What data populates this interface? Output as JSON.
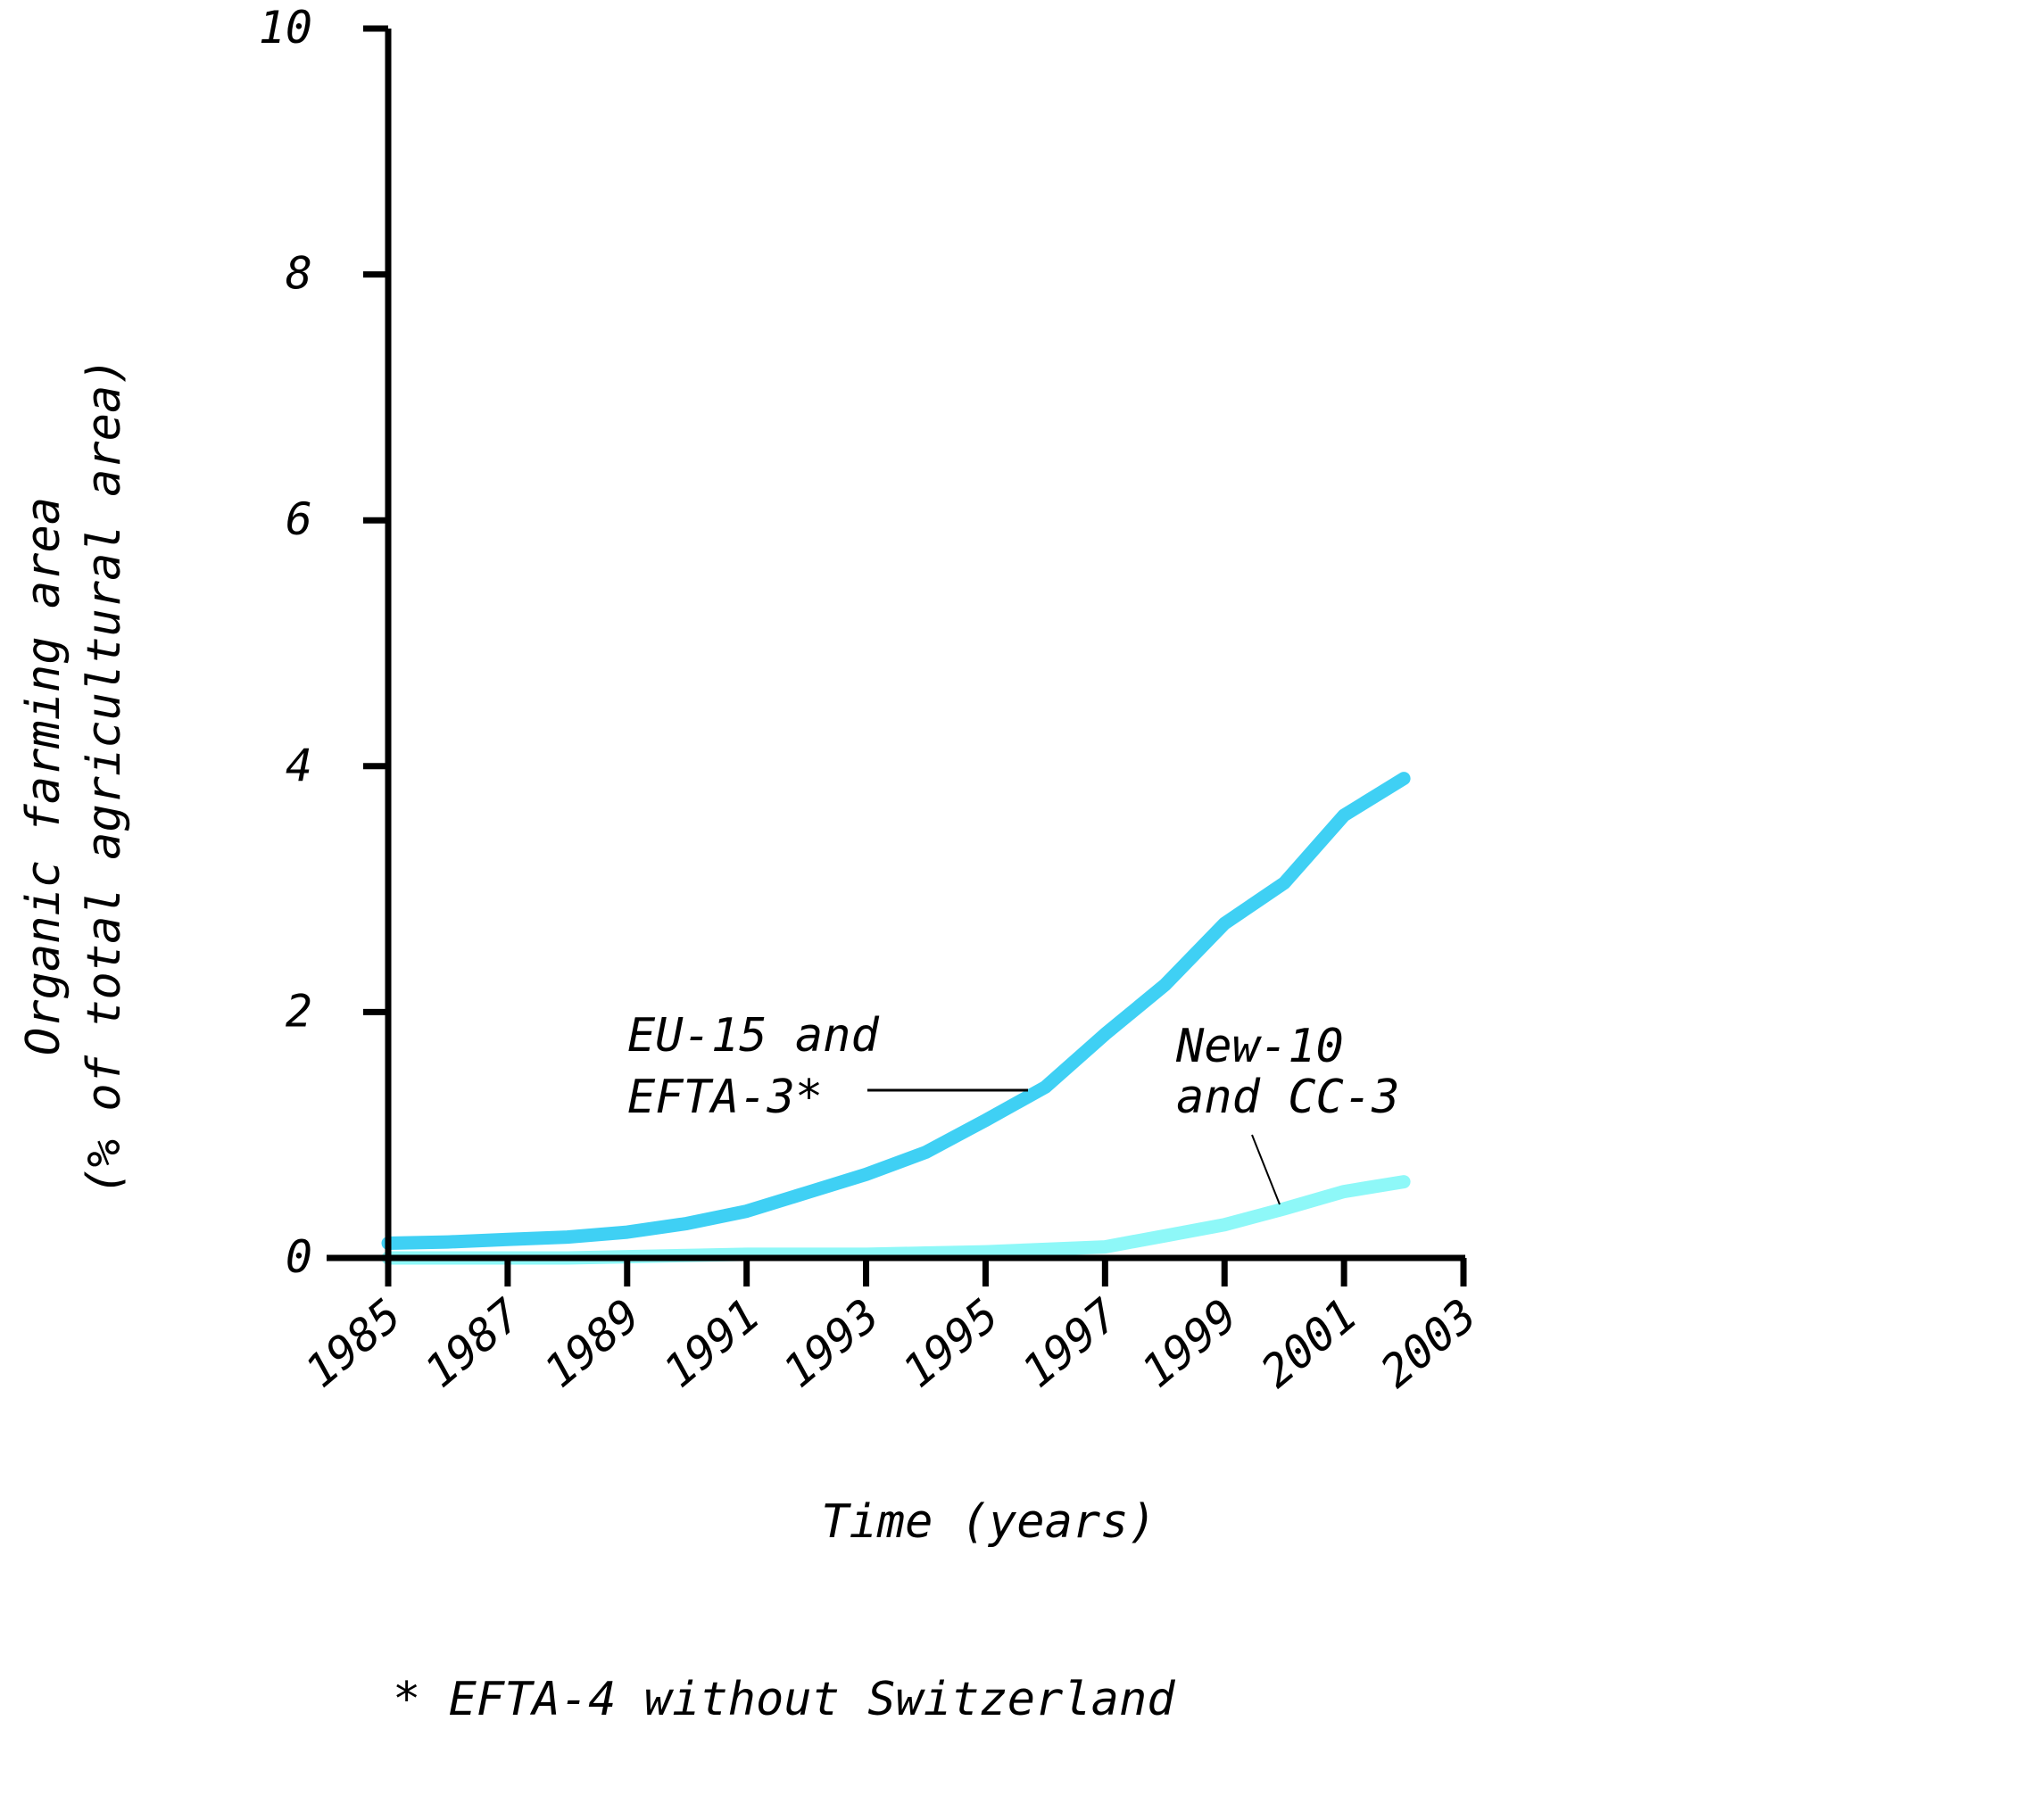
{
  "chart_data": {
    "type": "line",
    "xlabel": "Time (years)",
    "ylabel_line1": "Organic farming area",
    "ylabel_line2": "(% of total agricultural area)",
    "ylim": [
      0,
      10
    ],
    "xlim": [
      1985,
      2003
    ],
    "y_ticks": [
      "0",
      "2",
      "4",
      "6",
      "8",
      "10"
    ],
    "x_ticks": [
      "1985",
      "1987",
      "1989",
      "1991",
      "1993",
      "1995",
      "1997",
      "1999",
      "2001",
      "2003"
    ],
    "grid": false,
    "legend": "none",
    "series": [
      {
        "name": "EU-15 and EFTA-3*",
        "label_line1": "EU-15 and",
        "label_line2": "EFTA-3*",
        "color": "#3fd0f4",
        "x": [
          1985,
          1986,
          1987,
          1988,
          1989,
          1990,
          1991,
          1992,
          1993,
          1994,
          1995,
          1996,
          1997,
          1998,
          1999,
          2000,
          2001,
          2002
        ],
        "values": [
          0.12,
          0.13,
          0.15,
          0.17,
          0.21,
          0.28,
          0.38,
          0.53,
          0.68,
          0.86,
          1.12,
          1.39,
          1.82,
          2.22,
          2.72,
          3.05,
          3.6,
          3.9
        ]
      },
      {
        "name": "New-10 and CC-3",
        "label_line1": "New-10",
        "label_line2": "and CC-3",
        "color": "#8ef8f8",
        "x": [
          1985,
          1986,
          1987,
          1988,
          1989,
          1990,
          1991,
          1992,
          1993,
          1994,
          1995,
          1996,
          1997,
          1998,
          1999,
          2000,
          2001,
          2002
        ],
        "values": [
          0.0,
          0.0,
          0.0,
          0.0,
          0.01,
          0.02,
          0.03,
          0.03,
          0.03,
          0.04,
          0.05,
          0.07,
          0.09,
          0.18,
          0.27,
          0.4,
          0.54,
          0.62
        ]
      }
    ],
    "footnote": "* EFTA-4 without Switzerland"
  }
}
